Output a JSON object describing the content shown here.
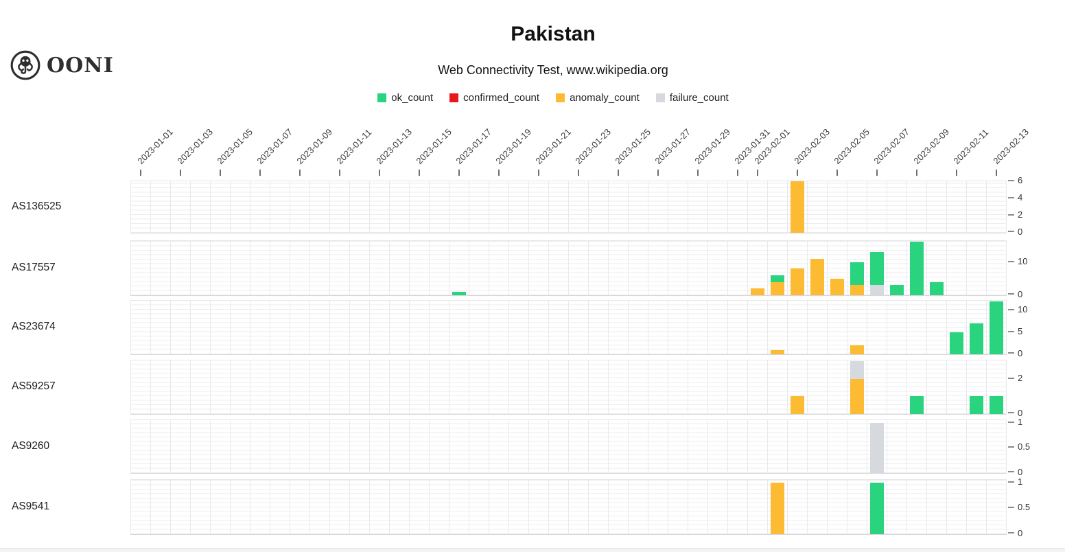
{
  "brand": {
    "name": "OONI"
  },
  "chart_data": {
    "type": "bar",
    "stacked": true,
    "title": "Pakistan",
    "subtitle": "Web Connectivity Test, www.wikipedia.org",
    "legend_position": "top-center",
    "grid": true,
    "x_axis": {
      "start": "2023-01-01",
      "end": "2023-02-13",
      "tick_labels": [
        "2023-01-01",
        "2023-01-03",
        "2023-01-05",
        "2023-01-07",
        "2023-01-09",
        "2023-01-11",
        "2023-01-13",
        "2023-01-15",
        "2023-01-17",
        "2023-01-19",
        "2023-01-21",
        "2023-01-23",
        "2023-01-25",
        "2023-01-27",
        "2023-01-29",
        "2023-01-31",
        "2023-02-01",
        "2023-02-03",
        "2023-02-05",
        "2023-02-07",
        "2023-02-09",
        "2023-02-11",
        "2023-02-13"
      ]
    },
    "series_legend": [
      {
        "name": "ok_count",
        "color": "#2ad47e"
      },
      {
        "name": "confirmed_count",
        "color": "#e8191c"
      },
      {
        "name": "anomaly_count",
        "color": "#fcbb33"
      },
      {
        "name": "failure_count",
        "color": "#d6d9de"
      }
    ],
    "facets": [
      {
        "label": "AS136525",
        "ymax": 6,
        "yticks": [
          0,
          2,
          4,
          6
        ],
        "bars": [
          {
            "date": "2023-02-03",
            "segments": [
              {
                "series": "anomaly_count",
                "value": 6
              }
            ]
          }
        ]
      },
      {
        "label": "AS17557",
        "ymax": 16.3,
        "yticks": [
          0,
          10
        ],
        "bars": [
          {
            "date": "2023-01-17",
            "segments": [
              {
                "series": "ok_count",
                "value": 1
              }
            ]
          },
          {
            "date": "2023-02-01",
            "segments": [
              {
                "series": "anomaly_count",
                "value": 2
              }
            ]
          },
          {
            "date": "2023-02-02",
            "segments": [
              {
                "series": "anomaly_count",
                "value": 4
              },
              {
                "series": "ok_count",
                "value": 2
              }
            ]
          },
          {
            "date": "2023-02-03",
            "segments": [
              {
                "series": "anomaly_count",
                "value": 8
              }
            ]
          },
          {
            "date": "2023-02-04",
            "segments": [
              {
                "series": "anomaly_count",
                "value": 11
              }
            ]
          },
          {
            "date": "2023-02-05",
            "segments": [
              {
                "series": "anomaly_count",
                "value": 5
              }
            ]
          },
          {
            "date": "2023-02-06",
            "segments": [
              {
                "series": "anomaly_count",
                "value": 3
              },
              {
                "series": "ok_count",
                "value": 7
              }
            ]
          },
          {
            "date": "2023-02-07",
            "segments": [
              {
                "series": "failure_count",
                "value": 3
              },
              {
                "series": "ok_count",
                "value": 10
              }
            ]
          },
          {
            "date": "2023-02-08",
            "segments": [
              {
                "series": "ok_count",
                "value": 3
              }
            ]
          },
          {
            "date": "2023-02-09",
            "segments": [
              {
                "series": "ok_count",
                "value": 16
              }
            ]
          },
          {
            "date": "2023-02-10",
            "segments": [
              {
                "series": "ok_count",
                "value": 4
              }
            ]
          }
        ]
      },
      {
        "label": "AS23674",
        "ymax": 12.2,
        "yticks": [
          0,
          5,
          10
        ],
        "bars": [
          {
            "date": "2023-02-02",
            "segments": [
              {
                "series": "anomaly_count",
                "value": 1
              }
            ]
          },
          {
            "date": "2023-02-06",
            "segments": [
              {
                "series": "anomaly_count",
                "value": 2
              }
            ]
          },
          {
            "date": "2023-02-11",
            "segments": [
              {
                "series": "ok_count",
                "value": 5
              }
            ]
          },
          {
            "date": "2023-02-12",
            "segments": [
              {
                "series": "ok_count",
                "value": 7
              }
            ]
          },
          {
            "date": "2023-02-13",
            "segments": [
              {
                "series": "ok_count",
                "value": 12
              }
            ]
          }
        ]
      },
      {
        "label": "AS59257",
        "ymax": 3.05,
        "yticks": [
          0,
          2
        ],
        "bars": [
          {
            "date": "2023-02-03",
            "segments": [
              {
                "series": "anomaly_count",
                "value": 1
              }
            ]
          },
          {
            "date": "2023-02-06",
            "segments": [
              {
                "series": "anomaly_count",
                "value": 2
              },
              {
                "series": "failure_count",
                "value": 1
              }
            ]
          },
          {
            "date": "2023-02-09",
            "segments": [
              {
                "series": "ok_count",
                "value": 1
              }
            ]
          },
          {
            "date": "2023-02-12",
            "segments": [
              {
                "series": "ok_count",
                "value": 1
              }
            ]
          },
          {
            "date": "2023-02-13",
            "segments": [
              {
                "series": "ok_count",
                "value": 1
              }
            ]
          }
        ]
      },
      {
        "label": "AS9260",
        "ymax": 1.05,
        "yticks": [
          0,
          0.5,
          1
        ],
        "bars": [
          {
            "date": "2023-02-07",
            "segments": [
              {
                "series": "failure_count",
                "value": 1
              }
            ]
          }
        ]
      },
      {
        "label": "AS9541",
        "ymax": 1.05,
        "yticks": [
          0,
          0.5,
          1
        ],
        "bars": [
          {
            "date": "2023-02-02",
            "segments": [
              {
                "series": "anomaly_count",
                "value": 1
              }
            ]
          },
          {
            "date": "2023-02-07",
            "segments": [
              {
                "series": "ok_count",
                "value": 1
              }
            ]
          }
        ]
      }
    ]
  }
}
